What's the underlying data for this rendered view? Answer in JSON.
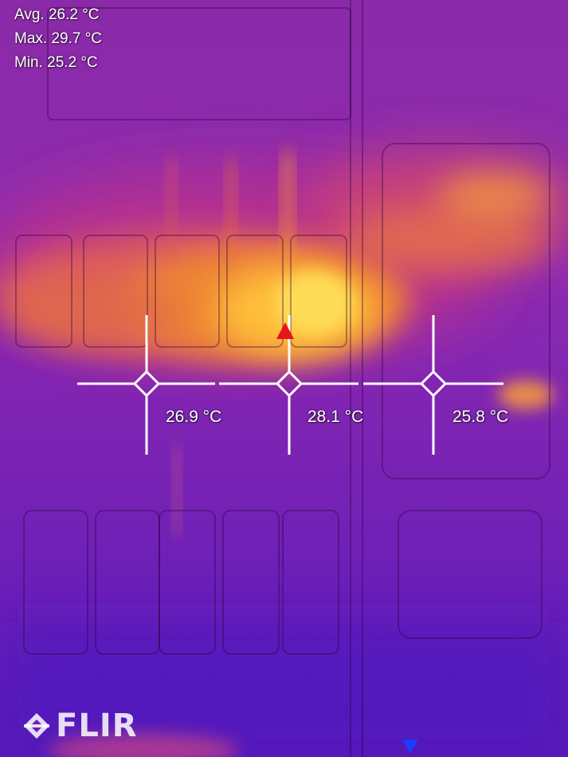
{
  "stats": {
    "avg": "Avg. 26.2 °C",
    "max": "Max. 29.7 °C",
    "min": "Min. 25.2 °C"
  },
  "spots": [
    {
      "label": "26.9 °C"
    },
    {
      "label": "28.1 °C"
    },
    {
      "label": "25.8 °C"
    }
  ],
  "brand": {
    "logo_text": "FLIR",
    "logo_icon": "flir-diamond-icon"
  },
  "markers": {
    "hot_color": "#e8141c",
    "cold_color": "#1a3cff"
  },
  "palette": {
    "hot": "#ffd23a",
    "warm": "#ff8a1a",
    "mid": "#c8309a",
    "cool": "#6a1fb8"
  }
}
